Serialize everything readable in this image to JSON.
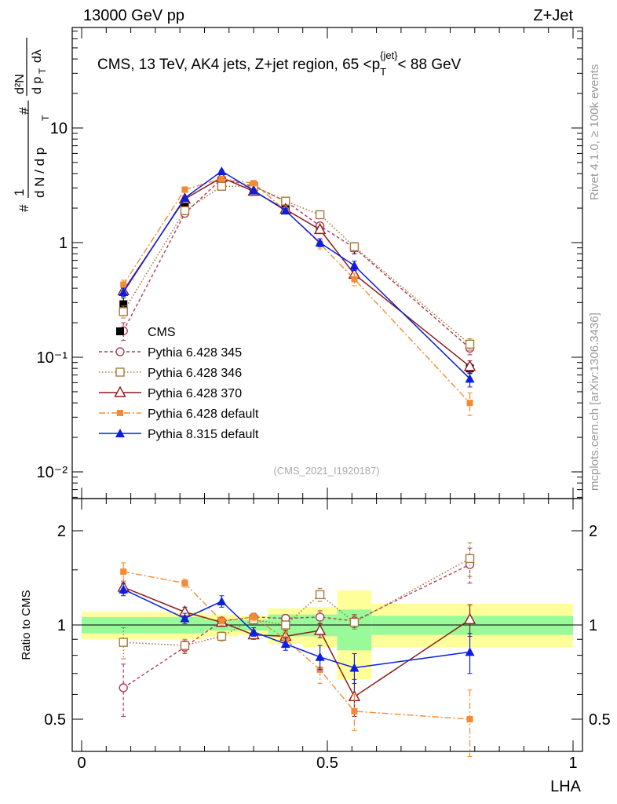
{
  "header": {
    "left": "13000 GeV pp",
    "right": "Z+Jet"
  },
  "side_labels": {
    "rivet": "Rivet 4.1.0, ≥ 100k events",
    "mcplots": "mcplots.cern.ch [arXiv:1306.3436]"
  },
  "watermark": "(CMS_2021_I1920187)",
  "colors": {
    "cms": "#000000",
    "p345": "#b03b5a",
    "p346": "#a57a3a",
    "p370": "#8e1a1a",
    "p6def": "#f58a33",
    "p8def": "#0a1fe0",
    "band_inner": "#98fa98",
    "band_outer": "#ffff99"
  },
  "chart_data": [
    {
      "type": "line",
      "scale": "log",
      "title": "CMS, 13 TeV, AK4 jets, Z+jet region, 65 <p_T^{jet}< 88 GeV",
      "title_parts": {
        "prefix": "CMS, 13 TeV, AK4 jets, Z+jet region, 65 <p",
        "sub": "T",
        "sup": "{jet}",
        "suffix": "< 88 GeV"
      },
      "ylabel": "1/(dN/dp_T) d²N/(dp_T dλ)",
      "ylabel_parts": {
        "hash": "#",
        "one": "1",
        "dn": "d N / d p",
        "t": "T",
        "d2n": "d²N",
        "dpt": "d p",
        "dl": "dλ"
      },
      "xlabel": "LHA",
      "xlim": [
        0,
        1
      ],
      "ylim": [
        0.005,
        60
      ],
      "y_ticks": [
        {
          "value": 0.01,
          "label": "10⁻²"
        },
        {
          "value": 0.1,
          "label": "10⁻¹"
        },
        {
          "value": 1,
          "label": "1"
        },
        {
          "value": 10,
          "label": "10"
        }
      ],
      "x": [
        0.085,
        0.21,
        0.285,
        0.35,
        0.415,
        0.485,
        0.555,
        0.79
      ],
      "series": [
        {
          "name": "CMS",
          "key": "cms",
          "values": [
            0.29,
            2.2,
            3.5,
            3.0,
            2.1,
            1.35,
            0.9,
            0.08
          ],
          "err": [
            0.04,
            0.15,
            0.12,
            0.1,
            0.08,
            0.08,
            0.1,
            0.008
          ]
        },
        {
          "name": "Pythia 6.428 345",
          "key": "p345",
          "values": [
            0.17,
            1.8,
            3.6,
            3.1,
            2.3,
            1.4,
            0.9,
            0.12
          ],
          "err": [
            0.03,
            0.1,
            0.1,
            0.1,
            0.08,
            0.08,
            0.05,
            0.015
          ]
        },
        {
          "name": "Pythia 6.428 346",
          "key": "p346",
          "values": [
            0.25,
            1.9,
            3.1,
            3.1,
            2.3,
            1.75,
            0.92,
            0.13
          ],
          "err": [
            0.03,
            0.1,
            0.1,
            0.1,
            0.08,
            0.08,
            0.05,
            0.015
          ]
        },
        {
          "name": "Pythia 6.428 370",
          "key": "p370",
          "values": [
            0.38,
            2.4,
            3.7,
            2.8,
            1.95,
            1.3,
            0.53,
            0.083
          ],
          "err": [
            0.03,
            0.1,
            0.1,
            0.1,
            0.08,
            0.08,
            0.05,
            0.01
          ]
        },
        {
          "name": "Pythia 6.428 default",
          "key": "p6def",
          "values": [
            0.43,
            2.9,
            3.6,
            3.3,
            1.9,
            0.98,
            0.48,
            0.04
          ],
          "err": [
            0.04,
            0.12,
            0.1,
            0.1,
            0.1,
            0.1,
            0.06,
            0.009
          ]
        },
        {
          "name": "Pythia 8.315 default",
          "key": "p8def",
          "values": [
            0.37,
            2.45,
            4.2,
            2.85,
            1.9,
            1.0,
            0.63,
            0.065
          ],
          "err": [
            0.03,
            0.1,
            0.1,
            0.1,
            0.08,
            0.08,
            0.06,
            0.01
          ]
        }
      ]
    },
    {
      "type": "line",
      "scale": "log",
      "ylabel": "Ratio to CMS",
      "xlabel": "LHA",
      "xlim": [
        0,
        1
      ],
      "ylim": [
        0.42,
        2.4
      ],
      "y_ticks": [
        {
          "value": 0.5,
          "label": "0.5"
        },
        {
          "value": 1,
          "label": "1"
        },
        {
          "value": 2,
          "label": "2"
        }
      ],
      "x_ticks": [
        {
          "value": 0,
          "label": "0"
        },
        {
          "value": 0.5,
          "label": "0.5"
        },
        {
          "value": 1,
          "label": "1"
        }
      ],
      "bands": [
        {
          "x0": 0,
          "x1": 0.15,
          "inner": [
            0.94,
            1.06
          ],
          "outer": [
            0.9,
            1.1
          ]
        },
        {
          "x0": 0.15,
          "x1": 0.25,
          "inner": [
            0.94,
            1.06
          ],
          "outer": [
            0.9,
            1.1
          ]
        },
        {
          "x0": 0.25,
          "x1": 0.32,
          "inner": [
            0.96,
            1.04
          ],
          "outer": [
            0.92,
            1.08
          ]
        },
        {
          "x0": 0.32,
          "x1": 0.38,
          "inner": [
            0.96,
            1.04
          ],
          "outer": [
            0.93,
            1.07
          ]
        },
        {
          "x0": 0.38,
          "x1": 0.45,
          "inner": [
            0.92,
            1.08
          ],
          "outer": [
            0.87,
            1.13
          ]
        },
        {
          "x0": 0.45,
          "x1": 0.52,
          "inner": [
            0.92,
            1.08
          ],
          "outer": [
            0.85,
            1.14
          ]
        },
        {
          "x0": 0.52,
          "x1": 0.59,
          "inner": [
            0.83,
            1.12
          ],
          "outer": [
            0.67,
            1.29
          ]
        },
        {
          "x0": 0.59,
          "x1": 1.0,
          "inner": [
            0.93,
            1.07
          ],
          "outer": [
            0.85,
            1.17
          ]
        }
      ],
      "series": [
        {
          "name": "Pythia 6.428 345",
          "key": "p345",
          "values": [
            0.63,
            0.85,
            1.03,
            1.06,
            1.05,
            1.06,
            1.03,
            1.56
          ],
          "err": [
            0.12,
            0.04,
            0.03,
            0.03,
            0.03,
            0.05,
            0.05,
            0.2
          ]
        },
        {
          "name": "Pythia 6.428 346",
          "key": "p346",
          "values": [
            0.88,
            0.86,
            0.92,
            1.04,
            1.0,
            1.25,
            1.02,
            1.63
          ],
          "err": [
            0.1,
            0.04,
            0.03,
            0.03,
            0.03,
            0.06,
            0.05,
            0.2
          ]
        },
        {
          "name": "Pythia 6.428 370",
          "key": "p370",
          "values": [
            1.32,
            1.1,
            1.02,
            0.93,
            0.92,
            0.96,
            0.59,
            1.04
          ],
          "err": [
            0.06,
            0.04,
            0.03,
            0.03,
            0.04,
            0.05,
            0.08,
            0.12
          ]
        },
        {
          "name": "Pythia 6.428 default",
          "key": "p6def",
          "values": [
            1.48,
            1.36,
            1.03,
            1.06,
            0.9,
            0.72,
            0.53,
            0.5
          ],
          "err": [
            0.1,
            0.04,
            0.03,
            0.03,
            0.05,
            0.07,
            0.07,
            0.12
          ]
        },
        {
          "name": "Pythia 8.315 default",
          "key": "p8def",
          "values": [
            1.3,
            1.05,
            1.19,
            0.95,
            0.87,
            0.79,
            0.73,
            0.82
          ],
          "err": [
            0.06,
            0.04,
            0.05,
            0.03,
            0.04,
            0.07,
            0.08,
            0.12
          ]
        }
      ]
    }
  ]
}
